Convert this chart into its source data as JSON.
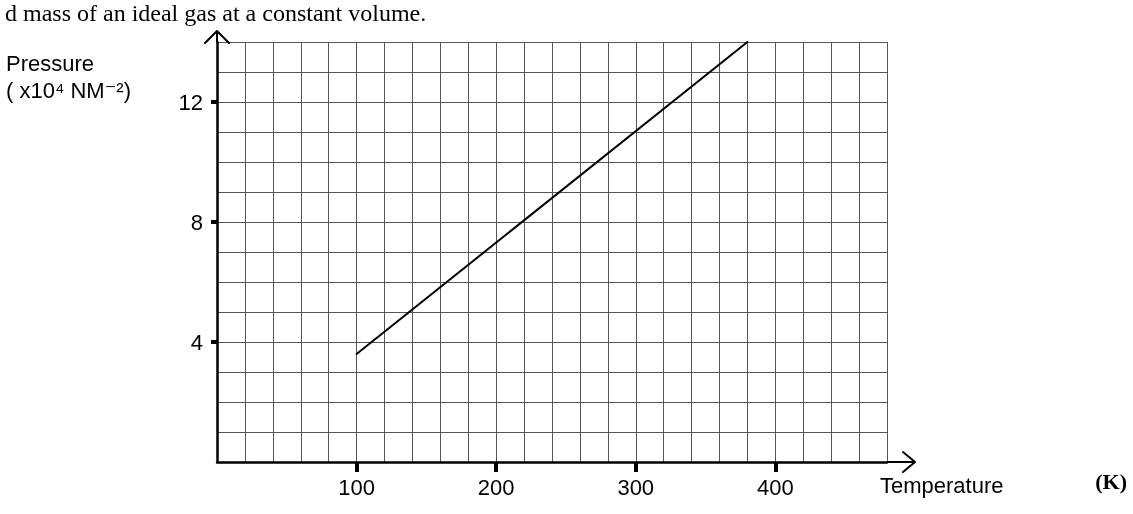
{
  "chart_data": {
    "type": "line",
    "title": "d mass of an ideal gas at a constant volume.",
    "xlabel": "Temperature",
    "ylabel": "Pressure\n( x10⁴ NM⁻²)",
    "annotations": [
      "(K)"
    ],
    "x": [
      100,
      380
    ],
    "series": [
      {
        "color": "#000000",
        "values": [
          3.6,
          14.0
        ]
      }
    ],
    "xlim": [
      0,
      480
    ],
    "xticks": [
      100,
      200,
      300,
      400
    ],
    "ylim": [
      0,
      14
    ],
    "yticks": [
      4,
      8,
      12
    ],
    "grid": true,
    "marker": "none",
    "line_style": "solid"
  }
}
